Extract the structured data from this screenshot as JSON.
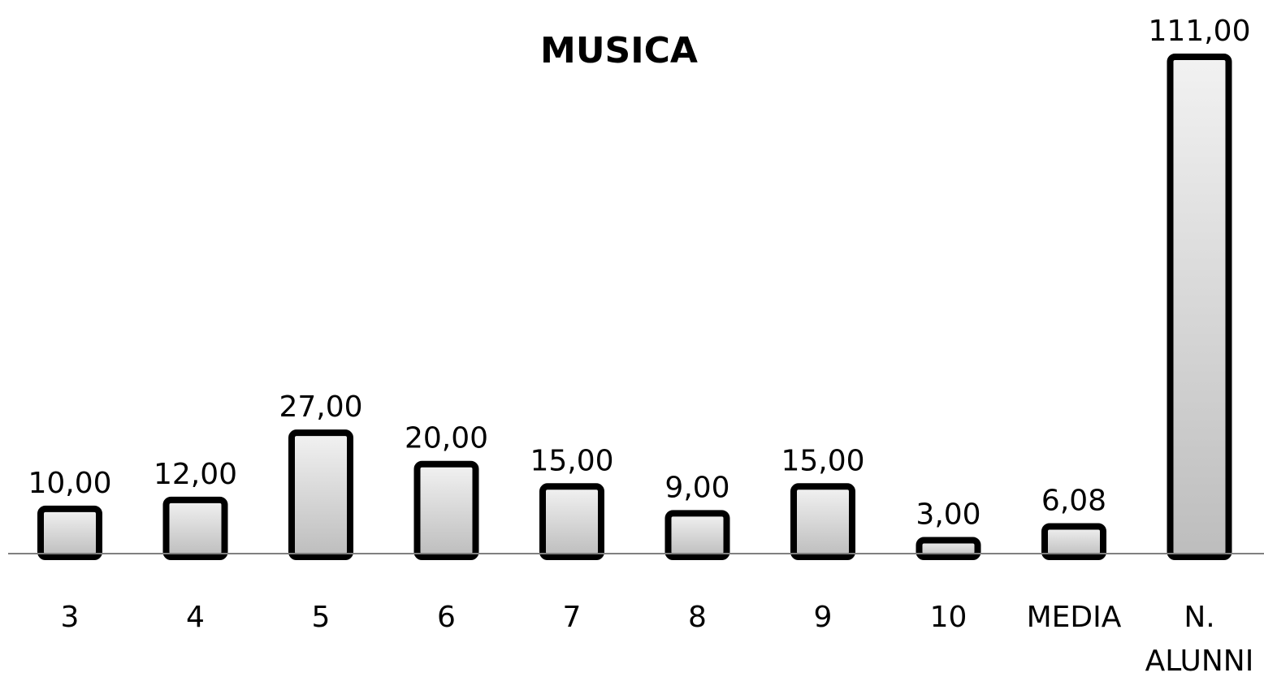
{
  "chart_data": {
    "type": "bar",
    "title": "MUSICA",
    "categories": [
      "3",
      "4",
      "5",
      "6",
      "7",
      "8",
      "9",
      "10",
      "MEDIA",
      "N. ALUNNI"
    ],
    "category_lines": [
      [
        "3"
      ],
      [
        "4"
      ],
      [
        "5"
      ],
      [
        "6"
      ],
      [
        "7"
      ],
      [
        "8"
      ],
      [
        "9"
      ],
      [
        "10"
      ],
      [
        "MEDIA"
      ],
      [
        "N.",
        "ALUNNI"
      ]
    ],
    "values": [
      10,
      12,
      27,
      20,
      15,
      9,
      15,
      3,
      6.08,
      111
    ],
    "data_labels": [
      "10,00",
      "12,00",
      "27,00",
      "20,00",
      "15,00",
      "9,00",
      "15,00",
      "3,00",
      "6,08",
      "111,00"
    ],
    "xlabel": "",
    "ylabel": "",
    "ylim": [
      0,
      111
    ],
    "grid": false,
    "legend": "none",
    "colors": {
      "bar_fill_top": "#f2f2f2",
      "bar_fill_bottom": "#bdbdbd",
      "bar_stroke": "#000000",
      "axis": "#808080",
      "text": "#000000"
    }
  }
}
